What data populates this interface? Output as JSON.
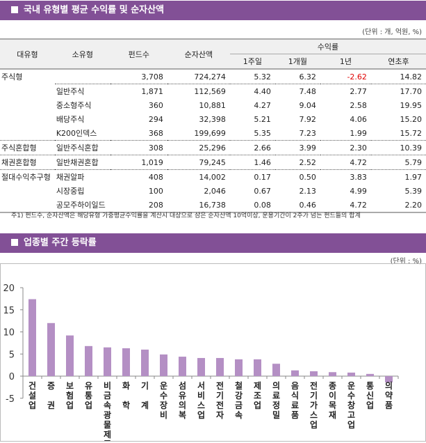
{
  "section1": {
    "title": "국내 유형별 평균 수익률 및 순자산액",
    "unit": "(단위 : 개, 억원, %)",
    "headers": {
      "major": "대유형",
      "minor": "소유형",
      "funds": "펀드수",
      "assets": "순자산액",
      "returns": "수익률",
      "w1": "1주일",
      "m1": "1개월",
      "y1": "1년",
      "ytd": "연초후"
    },
    "rows": [
      [
        "주식형",
        "",
        "3,708",
        "724,274",
        "5.32",
        "6.32",
        "-2.62",
        "14.82"
      ],
      [
        "",
        "일반주식",
        "1,871",
        "112,569",
        "4.40",
        "7.48",
        "2.77",
        "17.70"
      ],
      [
        "",
        "중소형주식",
        "360",
        "10,881",
        "4.27",
        "9.04",
        "2.58",
        "19.95"
      ],
      [
        "",
        "배당주식",
        "294",
        "32,398",
        "5.21",
        "7.92",
        "4.06",
        "15.20"
      ],
      [
        "",
        "K200인덱스",
        "368",
        "199,699",
        "5.35",
        "7.23",
        "1.99",
        "15.72"
      ],
      [
        "주식혼합형",
        "일반주식혼합",
        "308",
        "25,296",
        "2.66",
        "3.99",
        "2.30",
        "10.39"
      ],
      [
        "채권혼합형",
        "일반채권혼합",
        "1,019",
        "79,245",
        "1.46",
        "2.52",
        "4.72",
        "5.79"
      ],
      [
        "절대수익추구형",
        "채권알파",
        "408",
        "14,002",
        "0.17",
        "0.50",
        "3.83",
        "1.97"
      ],
      [
        "",
        "시장중립",
        "100",
        "2,046",
        "0.67",
        "2.13",
        "4.99",
        "5.39"
      ],
      [
        "",
        "공모주하이일드",
        "208",
        "16,738",
        "0.08",
        "0.46",
        "4.72",
        "2.20"
      ]
    ],
    "note": "주1) 펀드수, 순자산액은 해당유형 가중평균수익률을 계산시 대상으로 삼은 순자산액 10억이상, 운용기간이 2주가 넘는 펀드들의 합계",
    "negative_color": "#e00000"
  },
  "section2": {
    "title": "업종별 주간 등락률",
    "unit": "(단위 : %)"
  },
  "colors": {
    "header": "#825096",
    "bar": "#b48fc4"
  },
  "chart_data": {
    "type": "bar",
    "ylim": [
      -5,
      20
    ],
    "yticks": [
      -5,
      0,
      5,
      10,
      15,
      20
    ],
    "grid": false,
    "categories": [
      "건설업",
      "증 권",
      "보험업",
      "유통업",
      "비금속광물제품",
      "화 학",
      "기 계",
      "운수장비",
      "섬유의복",
      "서비스업",
      "전기전자",
      "철강금속",
      "제조업",
      "의료정밀",
      "음식료품",
      "전기가스업",
      "종이목재",
      "운수창고업",
      "통신업",
      "의약품"
    ],
    "values": [
      17.4,
      12.0,
      9.2,
      6.8,
      6.5,
      6.3,
      6.0,
      4.9,
      4.4,
      4.1,
      4.1,
      3.8,
      3.8,
      2.8,
      1.3,
      1.1,
      0.9,
      0.8,
      0.5,
      -1.4
    ]
  }
}
